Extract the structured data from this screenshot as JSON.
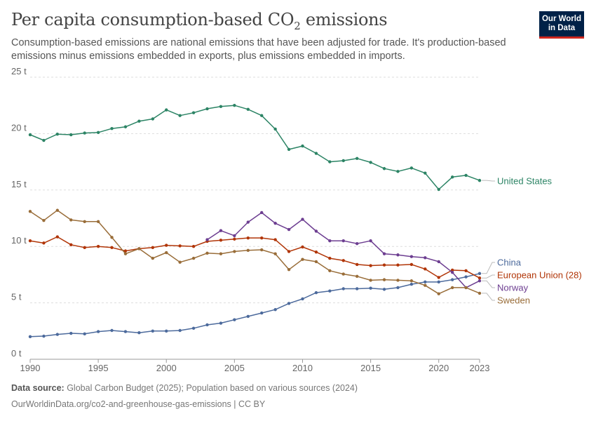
{
  "header": {
    "title": "Per capita consumption-based CO",
    "title_subscript": "2",
    "title_suffix": " emissions",
    "subtitle": "Consumption-based emissions are national emissions that have been adjusted for trade. It's production-based emissions minus emissions embedded in exports, plus emissions embedded in imports."
  },
  "logo": {
    "line1": "Our World",
    "line2": "in Data"
  },
  "chart_data": {
    "type": "line",
    "y_ticks": [
      {
        "value": 0,
        "label": "0 t"
      },
      {
        "value": 5,
        "label": "5 t"
      },
      {
        "value": 10,
        "label": "10 t"
      },
      {
        "value": 15,
        "label": "15 t"
      },
      {
        "value": 20,
        "label": "20 t"
      },
      {
        "value": 25,
        "label": "25 t"
      }
    ],
    "x_ticks": [
      {
        "value": 1990,
        "label": "1990"
      },
      {
        "value": 1995,
        "label": "1995"
      },
      {
        "value": 2000,
        "label": "2000"
      },
      {
        "value": 2005,
        "label": "2005"
      },
      {
        "value": 2010,
        "label": "2010"
      },
      {
        "value": 2015,
        "label": "2015"
      },
      {
        "value": 2020,
        "label": "2020"
      },
      {
        "value": 2023,
        "label": "2023"
      }
    ],
    "xlim": [
      1990,
      2023
    ],
    "ylim": [
      0,
      25
    ],
    "grid": "horizontal dashed",
    "series": [
      {
        "name": "United States",
        "color": "#2c8465",
        "x": [
          1990,
          1991,
          1992,
          1993,
          1994,
          1995,
          1996,
          1997,
          1998,
          1999,
          2000,
          2001,
          2002,
          2003,
          2004,
          2005,
          2006,
          2007,
          2008,
          2009,
          2010,
          2011,
          2012,
          2013,
          2014,
          2015,
          2016,
          2017,
          2018,
          2019,
          2020,
          2021,
          2022,
          2023
        ],
        "y": [
          19.9,
          19.4,
          19.95,
          19.9,
          20.05,
          20.1,
          20.45,
          20.6,
          21.1,
          21.3,
          22.1,
          21.6,
          21.85,
          22.2,
          22.4,
          22.5,
          22.15,
          21.6,
          20.4,
          18.6,
          18.9,
          18.25,
          17.5,
          17.6,
          17.8,
          17.45,
          16.9,
          16.65,
          16.95,
          16.5,
          15.05,
          16.15,
          16.3,
          15.85
        ]
      },
      {
        "name": "China",
        "color": "#4c6a9c",
        "x": [
          1990,
          1991,
          1992,
          1993,
          1994,
          1995,
          1996,
          1997,
          1998,
          1999,
          2000,
          2001,
          2002,
          2003,
          2004,
          2005,
          2006,
          2007,
          2008,
          2009,
          2010,
          2011,
          2012,
          2013,
          2014,
          2015,
          2016,
          2017,
          2018,
          2019,
          2020,
          2021,
          2022,
          2023
        ],
        "y": [
          2.0,
          2.05,
          2.2,
          2.3,
          2.25,
          2.45,
          2.55,
          2.45,
          2.35,
          2.5,
          2.5,
          2.55,
          2.75,
          3.05,
          3.2,
          3.5,
          3.8,
          4.1,
          4.4,
          4.95,
          5.35,
          5.9,
          6.05,
          6.25,
          6.25,
          6.3,
          6.2,
          6.35,
          6.65,
          6.85,
          6.85,
          7.05,
          7.3,
          7.6
        ]
      },
      {
        "name": "European Union (28)",
        "color": "#b13507",
        "x": [
          1990,
          1991,
          1992,
          1993,
          1994,
          1995,
          1996,
          1997,
          1998,
          1999,
          2000,
          2001,
          2002,
          2003,
          2004,
          2005,
          2006,
          2007,
          2008,
          2009,
          2010,
          2011,
          2012,
          2013,
          2014,
          2015,
          2016,
          2017,
          2018,
          2019,
          2020,
          2021,
          2022,
          2023
        ],
        "y": [
          10.5,
          10.3,
          10.85,
          10.15,
          9.9,
          10.0,
          9.9,
          9.6,
          9.8,
          9.9,
          10.1,
          10.05,
          10.0,
          10.45,
          10.55,
          10.65,
          10.75,
          10.75,
          10.6,
          9.55,
          9.95,
          9.5,
          8.95,
          8.75,
          8.4,
          8.3,
          8.35,
          8.35,
          8.4,
          8.0,
          7.25,
          7.9,
          7.85,
          7.2
        ]
      },
      {
        "name": "Norway",
        "color": "#6d3e91",
        "x": [
          2003,
          2004,
          2005,
          2006,
          2007,
          2008,
          2009,
          2010,
          2011,
          2012,
          2013,
          2014,
          2015,
          2016,
          2017,
          2018,
          2019,
          2020,
          2021,
          2022,
          2023
        ],
        "y": [
          10.6,
          11.4,
          10.95,
          12.15,
          13.0,
          12.05,
          11.5,
          12.4,
          11.35,
          10.5,
          10.5,
          10.25,
          10.5,
          9.35,
          9.25,
          9.1,
          9.0,
          8.65,
          7.7,
          6.35,
          6.95
        ]
      },
      {
        "name": "Sweden",
        "color": "#996d39",
        "x": [
          1990,
          1991,
          1992,
          1993,
          1994,
          1995,
          1996,
          1997,
          1998,
          1999,
          2000,
          2001,
          2002,
          2003,
          2004,
          2005,
          2006,
          2007,
          2008,
          2009,
          2010,
          2011,
          2012,
          2013,
          2014,
          2015,
          2016,
          2017,
          2018,
          2019,
          2020,
          2021,
          2022,
          2023
        ],
        "y": [
          13.1,
          12.3,
          13.2,
          12.35,
          12.2,
          12.2,
          10.8,
          9.35,
          9.8,
          8.95,
          9.45,
          8.6,
          8.95,
          9.4,
          9.35,
          9.55,
          9.65,
          9.7,
          9.35,
          7.95,
          8.85,
          8.65,
          7.85,
          7.55,
          7.35,
          7.0,
          7.05,
          7.0,
          6.95,
          6.55,
          5.8,
          6.35,
          6.35,
          5.85
        ]
      }
    ]
  },
  "footer": {
    "source_label": "Data source:",
    "source_text": " Global Carbon Budget (2025); Population based on various sources (2024)",
    "url_text": "OurWorldinData.org/co2-and-greenhouse-gas-emissions | CC BY"
  }
}
